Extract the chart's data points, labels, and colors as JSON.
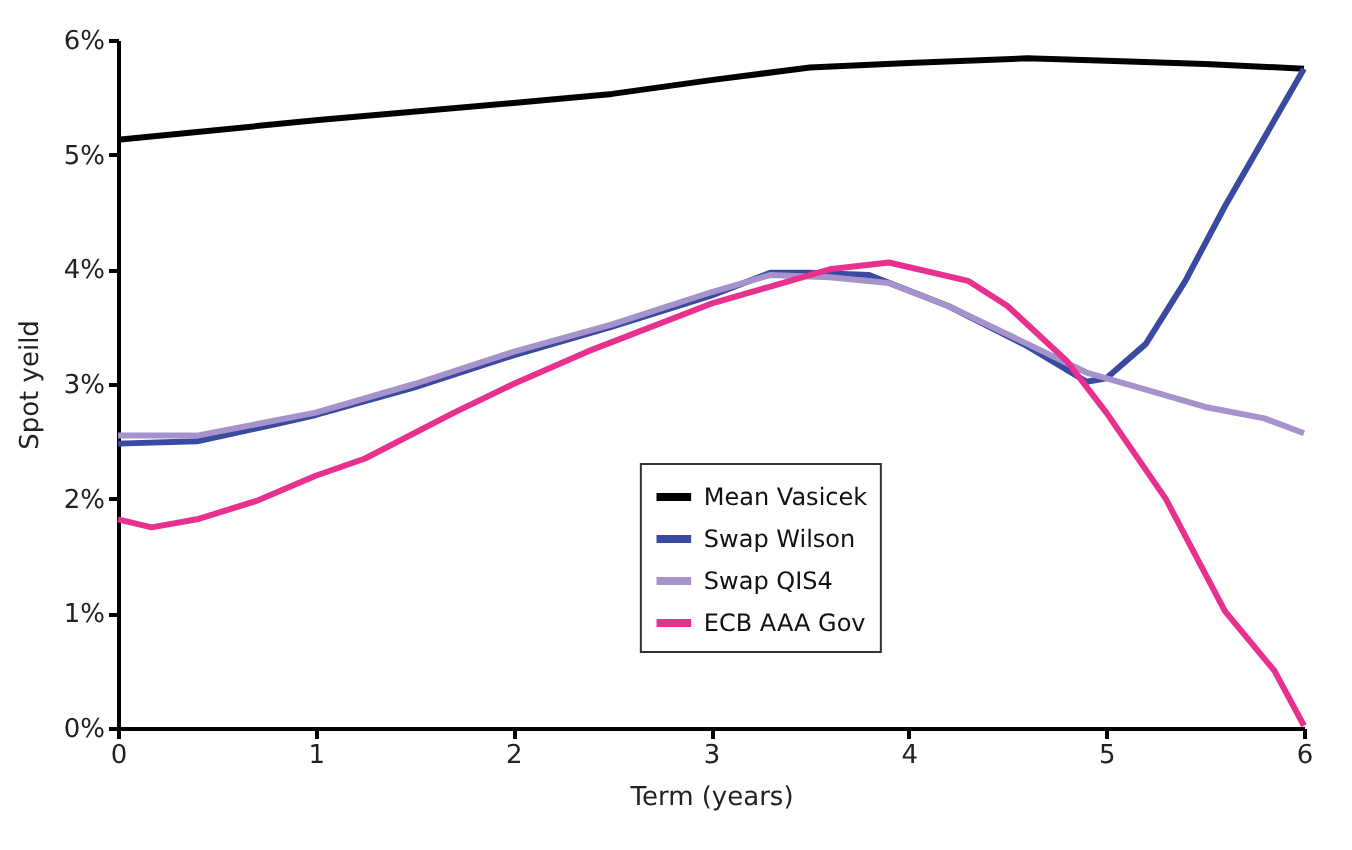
{
  "chart_data": {
    "type": "line",
    "xlabel": "Term (years)",
    "ylabel": "Spot yeild",
    "xlim": [
      0,
      6
    ],
    "xticks": [
      0,
      1,
      2,
      3,
      4,
      5,
      6
    ],
    "ylim": [
      0,
      6
    ],
    "yticks": [
      {
        "value": 0,
        "label": "0%"
      },
      {
        "value": 1,
        "label": "1%"
      },
      {
        "value": 2,
        "label": "2%"
      },
      {
        "value": 3,
        "label": "3%"
      },
      {
        "value": 4,
        "label": "4%"
      },
      {
        "value": 5,
        "label": "5%"
      },
      {
        "value": 6,
        "label": "6%"
      }
    ],
    "grid": false,
    "legend": "bottom",
    "marker": "none",
    "line_style": "solid",
    "series": [
      {
        "name": "Mean Vasicek",
        "color": "#000000",
        "x": [
          0,
          1,
          2,
          2.5,
          3,
          3.5,
          4,
          4.6,
          5,
          5.5,
          6
        ],
        "values": [
          5.13,
          5.3,
          5.45,
          5.53,
          5.65,
          5.76,
          5.8,
          5.84,
          5.82,
          5.79,
          5.75
        ]
      },
      {
        "name": "Swap Wilson",
        "color": "#3a4aa0",
        "x": [
          0,
          0.4,
          0.8,
          1,
          1.5,
          2,
          2.5,
          3,
          3.3,
          3.5,
          3.8,
          4.2,
          4.6,
          4.9,
          5,
          5.2,
          5.4,
          5.6,
          6
        ],
        "values": [
          2.48,
          2.5,
          2.65,
          2.73,
          2.97,
          3.25,
          3.5,
          3.77,
          3.97,
          3.97,
          3.95,
          3.68,
          3.33,
          3.02,
          3.05,
          3.35,
          3.9,
          4.55,
          5.75
        ]
      },
      {
        "name": "Swap QIS4",
        "color": "#a693cc",
        "x": [
          0,
          0.4,
          1,
          1.5,
          2,
          2.5,
          3,
          3.3,
          3.6,
          3.9,
          4.2,
          4.6,
          4.9,
          5.2,
          5.5,
          5.8,
          6
        ],
        "values": [
          2.55,
          2.55,
          2.75,
          3.0,
          3.28,
          3.52,
          3.8,
          3.95,
          3.93,
          3.88,
          3.68,
          3.35,
          3.1,
          2.95,
          2.8,
          2.7,
          2.57
        ]
      },
      {
        "name": "ECB AAA Gov",
        "color": "#e8318f",
        "x": [
          0,
          0.17,
          0.4,
          0.7,
          1,
          1.25,
          1.7,
          2,
          2.4,
          3,
          3.3,
          3.6,
          3.9,
          4.3,
          4.5,
          4.8,
          5,
          5.3,
          5.6,
          5.85,
          6
        ],
        "values": [
          1.82,
          1.75,
          1.82,
          1.98,
          2.2,
          2.35,
          2.75,
          3.0,
          3.3,
          3.7,
          3.85,
          4.0,
          4.06,
          3.9,
          3.68,
          3.2,
          2.75,
          2.0,
          1.02,
          0.5,
          0.02
        ]
      }
    ]
  }
}
